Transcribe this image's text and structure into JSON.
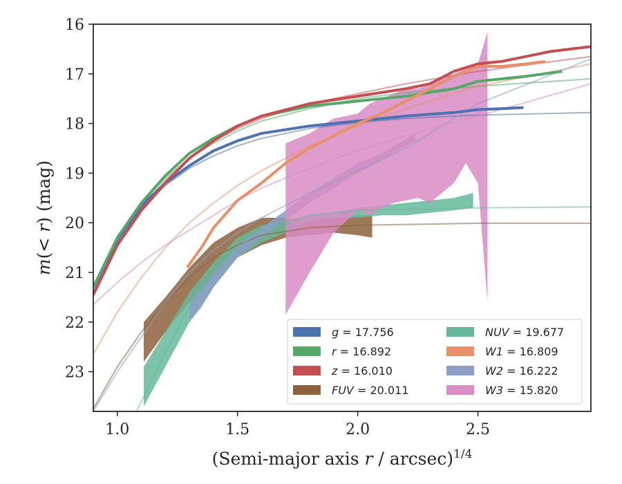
{
  "chart_data": {
    "type": "line",
    "title": "",
    "xlabel_prefix": "(Semi-major axis ",
    "xlabel_var": "r",
    "xlabel_mid": " / arcsec)",
    "xlabel_exp": "1/4",
    "ylabel_m": "m",
    "ylabel_paren": "(< ",
    "ylabel_r": "r",
    "ylabel_rest": ") (mag)",
    "xlim": [
      0.9,
      2.97
    ],
    "ylim": [
      23.8,
      16.0
    ],
    "y_inverted": true,
    "xticks": [
      "1.0",
      "1.5",
      "2.0",
      "2.5"
    ],
    "xtick_values": [
      1.0,
      1.5,
      2.0,
      2.5
    ],
    "yticks": [
      "16",
      "17",
      "18",
      "19",
      "20",
      "21",
      "22",
      "23"
    ],
    "ytick_values": [
      16,
      17,
      18,
      19,
      20,
      21,
      22,
      23
    ],
    "grid": false,
    "legend_position": "lower-right",
    "legend": [
      {
        "var": "g",
        "value": "17.756",
        "color": "#4c72b0"
      },
      {
        "var": "r",
        "value": "16.892",
        "color": "#55a868"
      },
      {
        "var": "z",
        "value": "16.010",
        "color": "#c44e52"
      },
      {
        "var": "FUV",
        "value": "20.011",
        "color": "#8c613c"
      },
      {
        "var": "NUV",
        "value": "19.677",
        "color": "#66b89a"
      },
      {
        "var": "W1",
        "value": "16.809",
        "color": "#e8906a"
      },
      {
        "var": "W2",
        "value": "16.222",
        "color": "#8c9ec6"
      },
      {
        "var": "W3",
        "value": "15.820",
        "color": "#d98cc6"
      }
    ],
    "series": [
      {
        "name": "g",
        "color": "#4c72b0",
        "model": [
          [
            0.9,
            21.4
          ],
          [
            1.0,
            20.35
          ],
          [
            1.1,
            19.7
          ],
          [
            1.2,
            19.25
          ],
          [
            1.3,
            18.9
          ],
          [
            1.4,
            18.65
          ],
          [
            1.5,
            18.45
          ],
          [
            1.6,
            18.3
          ],
          [
            1.8,
            18.1
          ],
          [
            2.0,
            17.98
          ],
          [
            2.2,
            17.9
          ],
          [
            2.5,
            17.83
          ],
          [
            2.97,
            17.78
          ]
        ],
        "data": [
          [
            0.9,
            21.45
          ],
          [
            1.0,
            20.35
          ],
          [
            1.1,
            19.65
          ],
          [
            1.2,
            19.2
          ],
          [
            1.3,
            18.85
          ],
          [
            1.4,
            18.55
          ],
          [
            1.5,
            18.35
          ],
          [
            1.6,
            18.2
          ],
          [
            1.8,
            18.05
          ],
          [
            2.0,
            17.95
          ],
          [
            2.2,
            17.85
          ],
          [
            2.4,
            17.78
          ],
          [
            2.5,
            17.72
          ],
          [
            2.6,
            17.7
          ],
          [
            2.69,
            17.68
          ]
        ]
      },
      {
        "name": "r",
        "color": "#55a868",
        "model": [
          [
            0.9,
            21.3
          ],
          [
            1.0,
            20.3
          ],
          [
            1.1,
            19.6
          ],
          [
            1.2,
            19.1
          ],
          [
            1.3,
            18.7
          ],
          [
            1.4,
            18.4
          ],
          [
            1.5,
            18.15
          ],
          [
            1.6,
            17.95
          ],
          [
            1.8,
            17.7
          ],
          [
            2.0,
            17.5
          ],
          [
            2.2,
            17.38
          ],
          [
            2.5,
            17.25
          ],
          [
            2.97,
            17.1
          ]
        ],
        "data": [
          [
            0.9,
            21.3
          ],
          [
            1.0,
            20.3
          ],
          [
            1.1,
            19.6
          ],
          [
            1.2,
            19.05
          ],
          [
            1.3,
            18.6
          ],
          [
            1.4,
            18.3
          ],
          [
            1.5,
            18.05
          ],
          [
            1.6,
            17.85
          ],
          [
            1.8,
            17.65
          ],
          [
            2.0,
            17.55
          ],
          [
            2.2,
            17.45
          ],
          [
            2.4,
            17.3
          ],
          [
            2.5,
            17.15
          ],
          [
            2.6,
            17.1
          ],
          [
            2.7,
            17.05
          ],
          [
            2.85,
            16.95
          ]
        ]
      },
      {
        "name": "z",
        "color": "#c44e52",
        "model": [
          [
            0.9,
            21.45
          ],
          [
            1.0,
            20.45
          ],
          [
            1.1,
            19.7
          ],
          [
            1.2,
            19.15
          ],
          [
            1.3,
            18.7
          ],
          [
            1.4,
            18.35
          ],
          [
            1.5,
            18.1
          ],
          [
            1.6,
            17.9
          ],
          [
            1.8,
            17.6
          ],
          [
            2.0,
            17.4
          ],
          [
            2.2,
            17.2
          ],
          [
            2.5,
            16.95
          ],
          [
            2.97,
            16.65
          ]
        ],
        "data": [
          [
            0.9,
            21.45
          ],
          [
            1.0,
            20.45
          ],
          [
            1.1,
            19.75
          ],
          [
            1.2,
            19.2
          ],
          [
            1.3,
            18.7
          ],
          [
            1.4,
            18.35
          ],
          [
            1.5,
            18.05
          ],
          [
            1.6,
            17.85
          ],
          [
            1.8,
            17.6
          ],
          [
            2.0,
            17.45
          ],
          [
            2.2,
            17.3
          ],
          [
            2.3,
            17.2
          ],
          [
            2.4,
            16.95
          ],
          [
            2.5,
            16.8
          ],
          [
            2.6,
            16.75
          ],
          [
            2.7,
            16.65
          ],
          [
            2.8,
            16.55
          ],
          [
            2.97,
            16.45
          ]
        ]
      },
      {
        "name": "FUV",
        "color": "#8c613c",
        "model": [
          [
            0.9,
            23.75
          ],
          [
            1.0,
            22.9
          ],
          [
            1.1,
            22.2
          ],
          [
            1.2,
            21.6
          ],
          [
            1.3,
            21.1
          ],
          [
            1.4,
            20.7
          ],
          [
            1.5,
            20.45
          ],
          [
            1.6,
            20.25
          ],
          [
            1.8,
            20.1
          ],
          [
            2.0,
            20.05
          ],
          [
            2.5,
            20.01
          ],
          [
            2.97,
            20.01
          ]
        ],
        "band_x": [
          1.11,
          1.2,
          1.3,
          1.4,
          1.5,
          1.6,
          1.7,
          1.8,
          1.9,
          2.0,
          2.06
        ],
        "band_upper": [
          22.0,
          21.5,
          20.9,
          20.4,
          20.1,
          19.9,
          19.9,
          19.95,
          19.9,
          19.85,
          19.85
        ],
        "band_lower": [
          22.8,
          22.2,
          21.6,
          21.1,
          20.7,
          20.45,
          20.3,
          20.25,
          20.2,
          20.25,
          20.3
        ]
      },
      {
        "name": "NUV",
        "color": "#66b89a",
        "model": [
          [
            1.08,
            23.8
          ],
          [
            1.2,
            22.6
          ],
          [
            1.3,
            21.7
          ],
          [
            1.4,
            21.0
          ],
          [
            1.5,
            20.5
          ],
          [
            1.6,
            20.15
          ],
          [
            1.8,
            19.85
          ],
          [
            2.0,
            19.75
          ],
          [
            2.5,
            19.7
          ],
          [
            2.97,
            19.68
          ]
        ],
        "band_x": [
          1.11,
          1.2,
          1.3,
          1.4,
          1.5,
          1.6,
          1.7,
          1.8,
          1.9,
          2.0,
          2.1,
          2.2,
          2.3,
          2.4,
          2.48
        ],
        "band_upper": [
          22.9,
          22.2,
          21.4,
          20.8,
          20.3,
          20.05,
          19.95,
          19.85,
          19.8,
          19.7,
          19.65,
          19.6,
          19.55,
          19.5,
          19.4
        ],
        "band_lower": [
          23.7,
          22.9,
          22.0,
          21.3,
          20.7,
          20.4,
          20.2,
          20.0,
          19.9,
          19.9,
          19.85,
          19.85,
          19.8,
          19.75,
          19.7
        ]
      },
      {
        "name": "W1",
        "color": "#e8906a",
        "model": [
          [
            0.9,
            22.65
          ],
          [
            1.0,
            21.8
          ],
          [
            1.1,
            21.1
          ],
          [
            1.2,
            20.5
          ],
          [
            1.3,
            20.0
          ],
          [
            1.4,
            19.6
          ],
          [
            1.5,
            19.25
          ],
          [
            1.6,
            18.95
          ],
          [
            1.8,
            18.45
          ],
          [
            2.0,
            18.05
          ],
          [
            2.2,
            17.7
          ],
          [
            2.5,
            17.25
          ],
          [
            2.97,
            16.8
          ]
        ],
        "data": [
          [
            1.29,
            20.9
          ],
          [
            1.35,
            20.5
          ],
          [
            1.4,
            20.1
          ],
          [
            1.5,
            19.55
          ],
          [
            1.6,
            19.2
          ],
          [
            1.7,
            18.8
          ],
          [
            1.8,
            18.5
          ],
          [
            1.9,
            18.25
          ],
          [
            2.0,
            18.0
          ],
          [
            2.1,
            17.8
          ],
          [
            2.2,
            17.55
          ],
          [
            2.3,
            17.3
          ],
          [
            2.4,
            17.05
          ],
          [
            2.5,
            16.85
          ],
          [
            2.6,
            16.85
          ],
          [
            2.7,
            16.8
          ],
          [
            2.78,
            16.75
          ]
        ]
      },
      {
        "name": "W2",
        "color": "#8c9ec6",
        "model": [
          [
            0.9,
            23.8
          ],
          [
            1.0,
            23.0
          ],
          [
            1.1,
            22.3
          ],
          [
            1.2,
            21.6
          ],
          [
            1.3,
            21.0
          ],
          [
            1.4,
            20.55
          ],
          [
            1.5,
            20.2
          ],
          [
            1.6,
            19.9
          ],
          [
            1.8,
            19.4
          ],
          [
            2.0,
            18.95
          ],
          [
            2.2,
            18.5
          ],
          [
            2.5,
            17.6
          ],
          [
            2.97,
            16.7
          ]
        ],
        "band_x": [
          1.3,
          1.35,
          1.4,
          1.5,
          1.6,
          1.7,
          1.8,
          1.9,
          2.0,
          2.1,
          2.24
        ],
        "band_upper": [
          21.6,
          21.3,
          21.0,
          20.45,
          20.1,
          19.75,
          19.4,
          19.1,
          18.8,
          18.6,
          18.2
        ],
        "band_lower": [
          22.0,
          21.7,
          21.3,
          20.7,
          20.3,
          19.95,
          19.6,
          19.3,
          19.0,
          18.75,
          18.35
        ]
      },
      {
        "name": "W3",
        "color": "#d98cc6",
        "model": [
          [
            0.9,
            21.65
          ],
          [
            1.0,
            21.2
          ],
          [
            1.1,
            20.8
          ],
          [
            1.2,
            20.45
          ],
          [
            1.3,
            20.15
          ],
          [
            1.4,
            19.85
          ],
          [
            1.5,
            19.55
          ],
          [
            1.6,
            19.3
          ],
          [
            1.8,
            18.9
          ],
          [
            2.0,
            18.55
          ],
          [
            2.2,
            18.25
          ],
          [
            2.5,
            17.85
          ],
          [
            2.97,
            17.2
          ]
        ],
        "band_x": [
          1.7,
          1.8,
          1.9,
          2.0,
          2.05,
          2.1,
          2.15,
          2.2,
          2.25,
          2.3,
          2.35,
          2.4,
          2.45,
          2.5,
          2.54
        ],
        "band_upper": [
          18.4,
          18.2,
          17.9,
          17.8,
          17.6,
          17.5,
          17.4,
          17.3,
          17.3,
          17.2,
          17.1,
          17.0,
          16.9,
          16.8,
          16.15
        ],
        "band_lower": [
          21.85,
          21.0,
          20.2,
          19.75,
          19.85,
          19.7,
          19.6,
          19.55,
          19.5,
          19.6,
          19.4,
          19.2,
          18.8,
          19.2,
          21.6
        ]
      }
    ]
  }
}
